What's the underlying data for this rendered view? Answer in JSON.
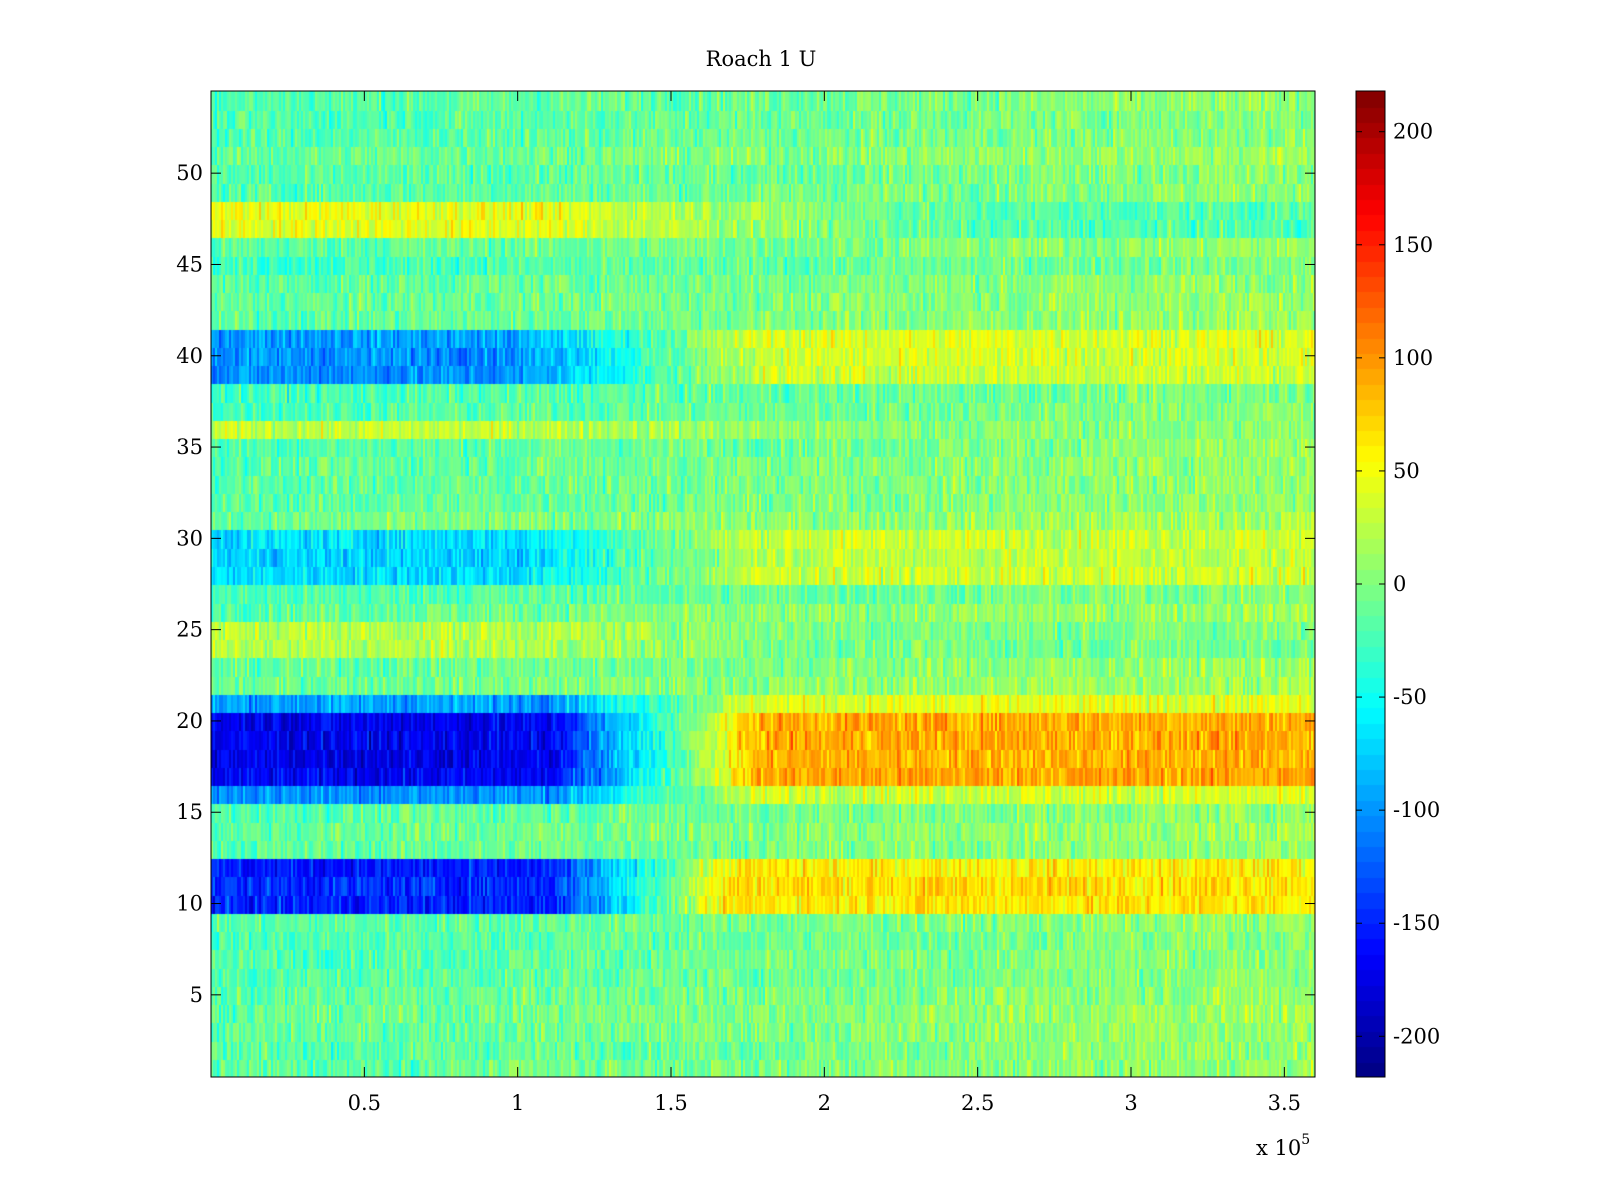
{
  "chart_data": {
    "type": "heatmap",
    "title": "Roach 1 U",
    "xlabel": "",
    "ylabel": "",
    "x_multiplier_label": "x 10",
    "x_multiplier_exponent": "5",
    "xlim": [
      0,
      3.6
    ],
    "ylim": [
      0.5,
      54.5
    ],
    "rows": 54,
    "x_ticks": [
      {
        "value": 0.5,
        "label": "0.5"
      },
      {
        "value": 1,
        "label": "1"
      },
      {
        "value": 1.5,
        "label": "1.5"
      },
      {
        "value": 2,
        "label": "2"
      },
      {
        "value": 2.5,
        "label": "2.5"
      },
      {
        "value": 3,
        "label": "3"
      },
      {
        "value": 3.5,
        "label": "3.5"
      }
    ],
    "y_ticks": [
      {
        "value": 5,
        "label": "5"
      },
      {
        "value": 10,
        "label": "10"
      },
      {
        "value": 15,
        "label": "15"
      },
      {
        "value": 20,
        "label": "20"
      },
      {
        "value": 25,
        "label": "25"
      },
      {
        "value": 30,
        "label": "30"
      },
      {
        "value": 35,
        "label": "35"
      },
      {
        "value": 40,
        "label": "40"
      },
      {
        "value": 45,
        "label": "45"
      },
      {
        "value": 50,
        "label": "50"
      }
    ],
    "colorbar": {
      "colormap": "jet",
      "clim": [
        -218,
        218
      ],
      "ticks": [
        {
          "value": 200,
          "label": "200"
        },
        {
          "value": 150,
          "label": "150"
        },
        {
          "value": 100,
          "label": "100"
        },
        {
          "value": 50,
          "label": "50"
        },
        {
          "value": 0,
          "label": "0"
        },
        {
          "value": -50,
          "label": "-50"
        },
        {
          "value": -100,
          "label": "-100"
        },
        {
          "value": -150,
          "label": "-150"
        },
        {
          "value": -200,
          "label": "-200"
        }
      ]
    },
    "base_level": -5,
    "noise_amplitude": 30,
    "row_profiles": [
      {
        "rows": [
          10,
          11,
          12
        ],
        "left": -150,
        "right": 65,
        "switch": [
          1.1,
          1.7
        ]
      },
      {
        "rows": [
          17,
          18,
          19,
          20
        ],
        "left": -170,
        "right": 90,
        "switch": [
          1.1,
          1.8
        ]
      },
      {
        "rows": [
          21,
          16
        ],
        "left": -95,
        "right": 40,
        "switch": [
          1.1,
          1.8
        ]
      },
      {
        "rows": [
          28,
          29,
          30
        ],
        "left": -70,
        "right": 30,
        "switch": [
          1.0,
          1.8
        ]
      },
      {
        "rows": [
          39,
          40,
          41
        ],
        "left": -95,
        "right": 40,
        "switch": [
          1.0,
          1.8
        ]
      },
      {
        "rows": [
          47,
          48
        ],
        "left": 45,
        "right": -20,
        "switch": [
          1.0,
          2.5
        ]
      },
      {
        "rows": [
          24,
          25,
          36
        ],
        "left": 25,
        "right": 0,
        "switch": [
          1.0,
          2.0
        ]
      }
    ]
  }
}
